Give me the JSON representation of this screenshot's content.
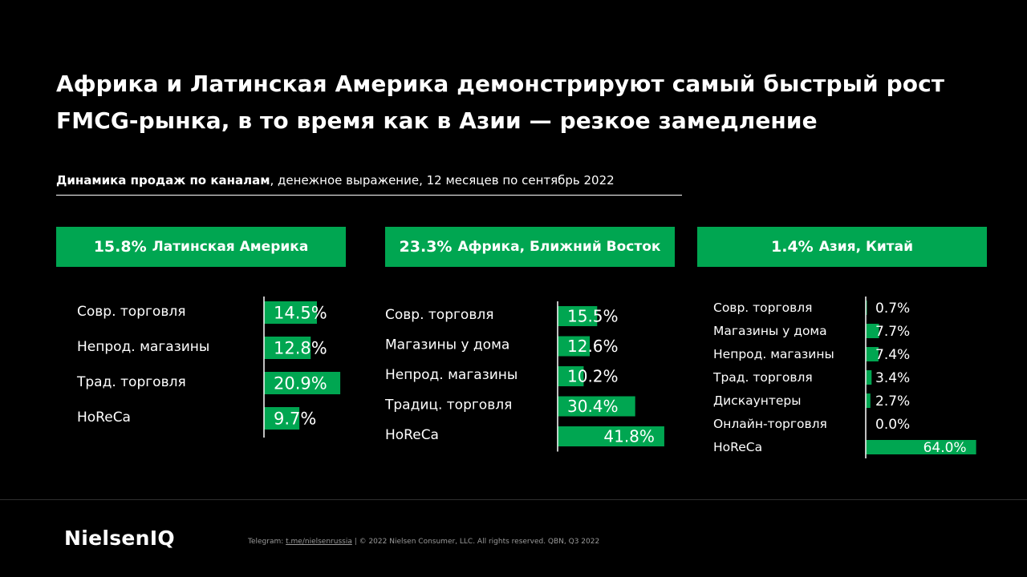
{
  "headline": {
    "line1": "Африка и Латинская Америка демонстрируют самый быстрый рост",
    "line2": "FMCG-рынка, в то время как в Азии — резкое замедление"
  },
  "subtitle": {
    "bold": "Динамика продаж по каналам",
    "rest": ", денежное выражение, 12 месяцев по сентябрь 2022"
  },
  "colors": {
    "accent": "#00a651",
    "background": "#000000",
    "text": "#ffffff"
  },
  "chart_data": [
    {
      "type": "bar",
      "orientation": "horizontal",
      "title_value": "15.8%",
      "title": "Латинская Америка",
      "categories": [
        "Совр. торговля",
        "Непрод. магазины",
        "Трад. торговля",
        "HoReCa"
      ],
      "values": [
        14.5,
        12.8,
        20.9,
        9.7
      ],
      "labels": [
        "14.5%",
        "12.8%",
        "20.9%",
        "9.7%"
      ],
      "unit": "%"
    },
    {
      "type": "bar",
      "orientation": "horizontal",
      "title_value": "23.3%",
      "title": "Африка, Ближний Восток",
      "categories": [
        "Совр. торговля",
        "Магазины у дома",
        "Непрод. магазины",
        "Традиц. торговля",
        "HoReCa"
      ],
      "values": [
        15.5,
        12.6,
        10.2,
        30.4,
        41.8
      ],
      "labels": [
        "15.5%",
        "12.6%",
        "10.2%",
        "30.4%",
        "41.8%"
      ],
      "unit": "%"
    },
    {
      "type": "bar",
      "orientation": "horizontal",
      "title_value": "1.4%",
      "title": "Азия, Китай",
      "categories": [
        "Совр. торговля",
        "Магазины у дома",
        "Непрод. магазины",
        "Трад. торговля",
        "Дискаунтеры",
        "Онлайн-торговля",
        "HoReCa"
      ],
      "values": [
        0.7,
        7.7,
        7.4,
        3.4,
        2.7,
        0.0,
        64.0
      ],
      "labels": [
        "0.7%",
        "7.7%",
        "7.4%",
        "3.4%",
        "2.7%",
        "0.0%",
        "64.0%"
      ],
      "unit": "%"
    }
  ],
  "footer": {
    "logo": "NielsenIQ",
    "telegram_label": "Telegram: ",
    "telegram_link": "t.me/nielsenrussia",
    "rights": "  | © 2022 Nielsen Consumer, LLC. All rights reserved. QBN, Q3 2022"
  }
}
